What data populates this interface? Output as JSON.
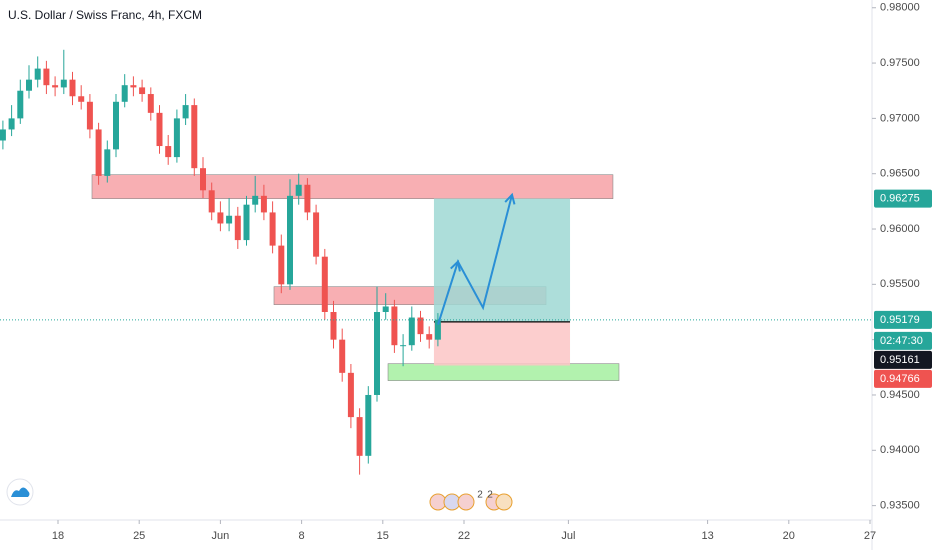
{
  "chart_data": {
    "type": "candlestick",
    "title": "U.S. Dollar / Swiss Franc, 4h, FXCM",
    "x": [
      13.25,
      14,
      14.75,
      15.5,
      16.25,
      17,
      17.75,
      18.5,
      19.25,
      20,
      20.75,
      21.5,
      22.25,
      23,
      23.75,
      24.5,
      25.25,
      26,
      26.75,
      27.5,
      28.25,
      29,
      29.75,
      30.5,
      31.25,
      32,
      32.75,
      33.5,
      34.25,
      35,
      35.75,
      36.5,
      37.25,
      38,
      38.75,
      39.5,
      40.25,
      41,
      41.75,
      42.5,
      43.25,
      44,
      44.75,
      45.5,
      46.25,
      47,
      47.75,
      48.5,
      49.25,
      50,
      50.75
    ],
    "open": [
      0.968,
      0.969,
      0.97,
      0.9725,
      0.9735,
      0.9745,
      0.973,
      0.9728,
      0.9735,
      0.972,
      0.9715,
      0.969,
      0.9648,
      0.9672,
      0.9715,
      0.973,
      0.9728,
      0.9722,
      0.9705,
      0.9675,
      0.9665,
      0.97,
      0.9712,
      0.9655,
      0.9635,
      0.9615,
      0.9605,
      0.9612,
      0.959,
      0.9622,
      0.963,
      0.9615,
      0.9585,
      0.955,
      0.963,
      0.964,
      0.9615,
      0.9575,
      0.9525,
      0.95,
      0.947,
      0.943,
      0.9395,
      0.945,
      0.9525,
      0.953,
      0.9495,
      0.9495,
      0.952,
      0.9505,
      0.95
    ],
    "high": [
      0.9698,
      0.9712,
      0.9735,
      0.9748,
      0.9756,
      0.9752,
      0.9738,
      0.9762,
      0.9742,
      0.973,
      0.9722,
      0.9696,
      0.968,
      0.9722,
      0.974,
      0.9738,
      0.9735,
      0.9728,
      0.9712,
      0.9685,
      0.9708,
      0.9722,
      0.9718,
      0.9665,
      0.9642,
      0.9625,
      0.9628,
      0.962,
      0.963,
      0.9648,
      0.964,
      0.9625,
      0.9595,
      0.9645,
      0.965,
      0.9646,
      0.9622,
      0.9582,
      0.9535,
      0.951,
      0.9478,
      0.9438,
      0.9458,
      0.9548,
      0.9542,
      0.9536,
      0.9505,
      0.953,
      0.9526,
      0.9512,
      0.9524
    ],
    "low": [
      0.9672,
      0.9684,
      0.9695,
      0.9718,
      0.9728,
      0.9722,
      0.972,
      0.9722,
      0.9712,
      0.9708,
      0.9682,
      0.964,
      0.9642,
      0.9665,
      0.971,
      0.972,
      0.9715,
      0.9698,
      0.9668,
      0.9658,
      0.966,
      0.9694,
      0.9648,
      0.9628,
      0.9608,
      0.9598,
      0.9598,
      0.9582,
      0.9585,
      0.9615,
      0.9608,
      0.9578,
      0.9542,
      0.9545,
      0.9622,
      0.9608,
      0.9568,
      0.9518,
      0.9492,
      0.9462,
      0.942,
      0.9378,
      0.9388,
      0.9444,
      0.9518,
      0.9488,
      0.9476,
      0.949,
      0.9498,
      0.9492,
      0.9494
    ],
    "close": [
      0.969,
      0.97,
      0.9725,
      0.9735,
      0.9745,
      0.973,
      0.9728,
      0.9735,
      0.972,
      0.9715,
      0.969,
      0.9648,
      0.9672,
      0.9715,
      0.973,
      0.9728,
      0.9722,
      0.9705,
      0.9675,
      0.9665,
      0.97,
      0.9712,
      0.9655,
      0.9635,
      0.9615,
      0.9605,
      0.9612,
      0.959,
      0.9622,
      0.963,
      0.9615,
      0.9585,
      0.955,
      0.963,
      0.964,
      0.9615,
      0.9575,
      0.9525,
      0.95,
      0.947,
      0.943,
      0.9395,
      0.945,
      0.9525,
      0.953,
      0.9495,
      0.9495,
      0.952,
      0.9505,
      0.95,
      0.9518
    ],
    "up_color": "#26a69a",
    "down_color": "#ef5350",
    "xlim": [
      13,
      88
    ],
    "ylim": [
      0.9337,
      0.9807
    ],
    "grid": false,
    "xticks": [
      18,
      25,
      {
        "value": 32,
        "label": "Jun"
      },
      {
        "value": 39,
        "label": "8"
      },
      {
        "value": 46,
        "label": "15"
      },
      {
        "value": 53,
        "label": "22"
      },
      {
        "value": 62,
        "label": "Jul"
      },
      {
        "value": 74,
        "label": "13"
      },
      {
        "value": 81,
        "label": "20"
      },
      {
        "value": 88,
        "label": "27"
      }
    ],
    "yticks": [
      {
        "value": 0.98,
        "label": "0.98000"
      },
      {
        "value": 0.975,
        "label": "0.97500"
      },
      {
        "value": 0.97,
        "label": "0.97000"
      },
      {
        "value": 0.965,
        "label": "0.96500"
      },
      {
        "value": 0.96,
        "label": "0.96000"
      },
      {
        "value": 0.955,
        "label": "0.95500"
      },
      {
        "value": 0.95,
        "label": "0.95000"
      },
      {
        "value": 0.945,
        "label": "0.94500"
      },
      {
        "value": 0.94,
        "label": "0.94000"
      },
      {
        "value": 0.935,
        "label": "0.93500"
      }
    ],
    "zones": [
      {
        "x": [
          20.93,
          65.84
        ],
        "y": [
          0.96274,
          0.96491
        ],
        "color": "#f7a1a6"
      },
      {
        "x": [
          36.62,
          60.07
        ],
        "y": [
          0.95316,
          0.95479
        ],
        "color": "#f7a1a6"
      },
      {
        "x": [
          46.45,
          66.36
        ],
        "y": [
          0.9463,
          0.94783
        ],
        "color": "#a5f0a0"
      }
    ],
    "position": {
      "x": [
        50.41,
        62.14
      ],
      "entry": {
        "value": 0.95161,
        "label": "0.95161"
      },
      "target": {
        "value": 0.96275,
        "label": "0.96275"
      },
      "stop": {
        "value": 0.94766,
        "label": "0.94766"
      },
      "profit_color": "#9fd8d3",
      "loss_color": "#fbc6c6"
    },
    "price_line": {
      "value": 0.95179,
      "label": "0.95179",
      "color": "#26a69a"
    },
    "countdown": "02:47:30",
    "arrow": {
      "x": [
        50.76,
        52.48,
        54.64,
        57.14
      ],
      "y": [
        0.95136,
        0.95705,
        0.95289,
        0.9631
      ],
      "color": "#2a8fd6"
    },
    "event_counts": [
      "2",
      "2"
    ]
  }
}
